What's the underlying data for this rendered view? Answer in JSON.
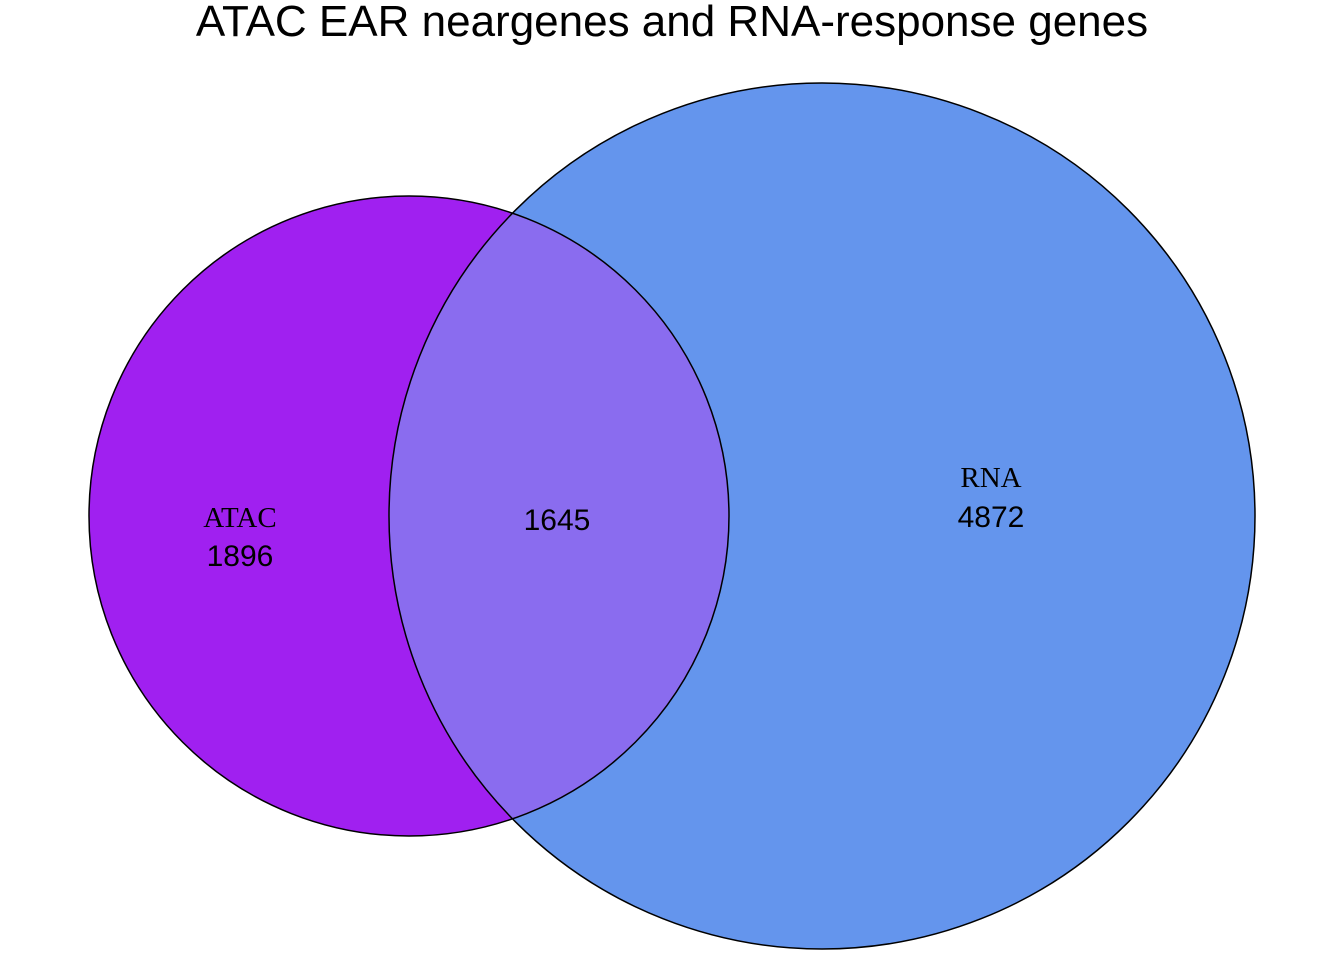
{
  "title": "ATAC EAR neargenes and RNA-response genes",
  "sets": [
    {
      "name": "ATAC",
      "only_count": "1896",
      "color": "#A020F0"
    },
    {
      "name": "RNA",
      "only_count": "4872",
      "color": "#6495ED"
    }
  ],
  "intersection": {
    "count": "1645",
    "color": "#8A6CEF"
  },
  "outline_color": "#000000"
}
